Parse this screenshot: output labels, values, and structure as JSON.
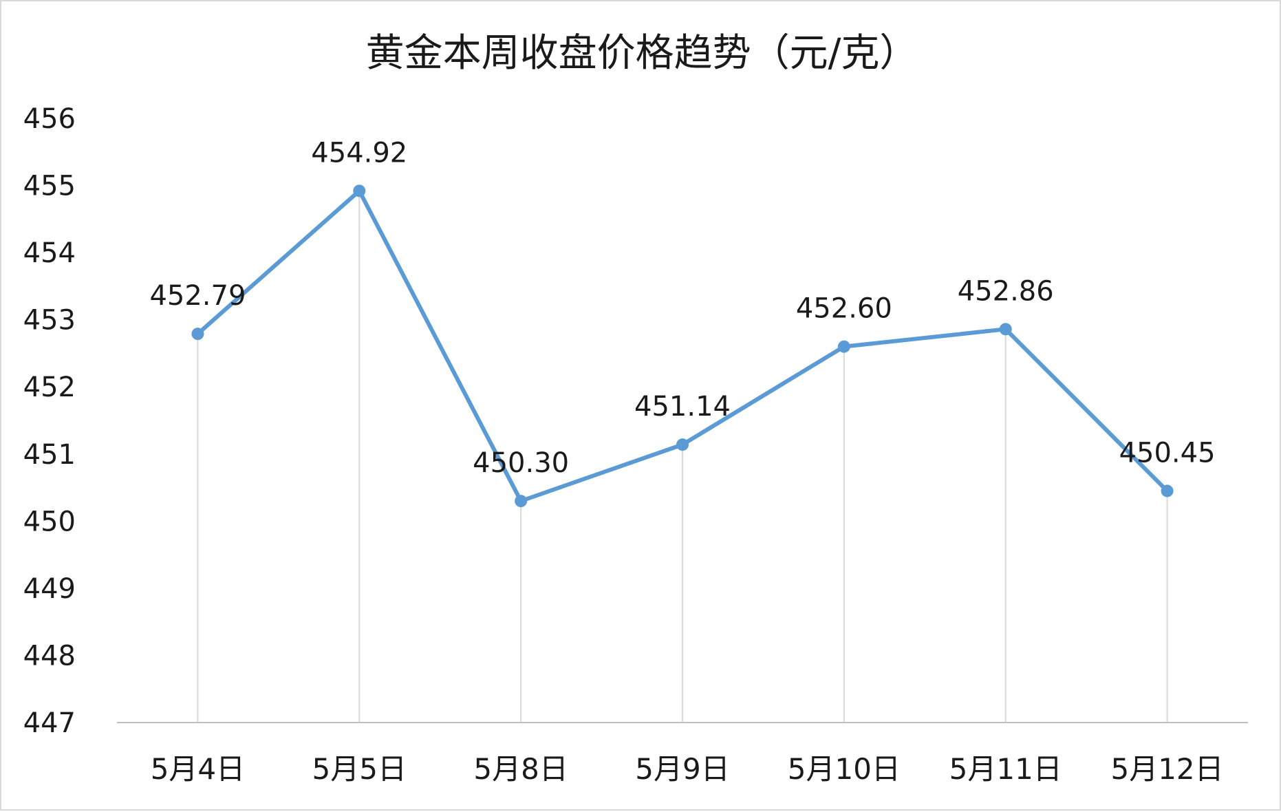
{
  "chart_data": {
    "type": "line",
    "title": "黄金本周收盘价格趋势（元/克）",
    "categories": [
      "5月4日",
      "5月5日",
      "5月8日",
      "5月9日",
      "5月10日",
      "5月11日",
      "5月12日"
    ],
    "values": [
      452.79,
      454.92,
      450.3,
      451.14,
      452.6,
      452.86,
      450.45
    ],
    "data_labels": [
      "452.79",
      "454.92",
      "450.30",
      "451.14",
      "452.60",
      "452.86",
      "450.45"
    ],
    "yticks": [
      "447",
      "448",
      "449",
      "450",
      "451",
      "452",
      "453",
      "454",
      "455",
      "456"
    ],
    "ylim": [
      447,
      456
    ],
    "grid": false,
    "drop_lines": true,
    "legend": "none",
    "colors": {
      "series": "#5b9bd5",
      "drop_line": "#d9d9d9",
      "axis": "#bfbfbf",
      "text": "#1a1a1a"
    }
  }
}
